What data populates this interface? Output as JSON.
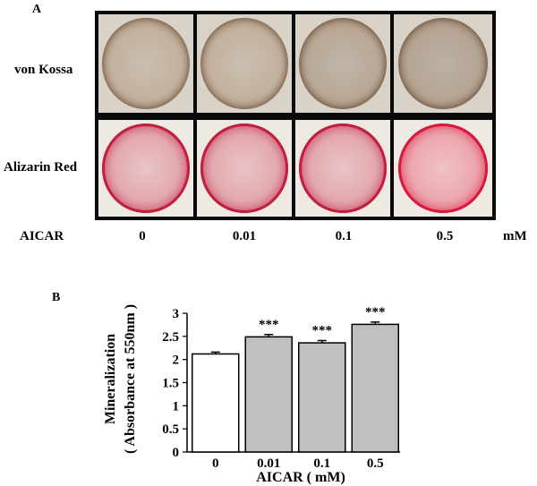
{
  "panel_a": {
    "letter": "A",
    "rows": [
      "von Kossa",
      "Alizarin Red"
    ],
    "aicar_label": "AICAR",
    "concentrations": [
      "0",
      "0.01",
      "0.1",
      "0.5"
    ],
    "unit": "mM"
  },
  "panel_b": {
    "letter": "B"
  },
  "colors": {
    "control_bar": "#ffffff",
    "treated_bar": "#c0c0c0",
    "kossa_stain": "#8a6c52",
    "alizarin_stain": "#c01f3d"
  },
  "chart_data": {
    "type": "bar",
    "categories": [
      "0",
      "0.01",
      "0.1",
      "0.5"
    ],
    "values": [
      2.12,
      2.49,
      2.36,
      2.76
    ],
    "errors": [
      0.04,
      0.05,
      0.05,
      0.05
    ],
    "significance": [
      "",
      "***",
      "***",
      "***"
    ],
    "bar_colors": [
      "#ffffff",
      "#c0c0c0",
      "#c0c0c0",
      "#c0c0c0"
    ],
    "xlabel": "AICAR ( mM)",
    "ylabel_line1": "Mineralization",
    "ylabel_line2": "( Absorbance at 550nm )",
    "ylim": [
      0,
      3
    ],
    "yticks": [
      "0",
      "0.5",
      "1",
      "1.5",
      "2",
      "2.5",
      "3"
    ],
    "grid": false
  }
}
